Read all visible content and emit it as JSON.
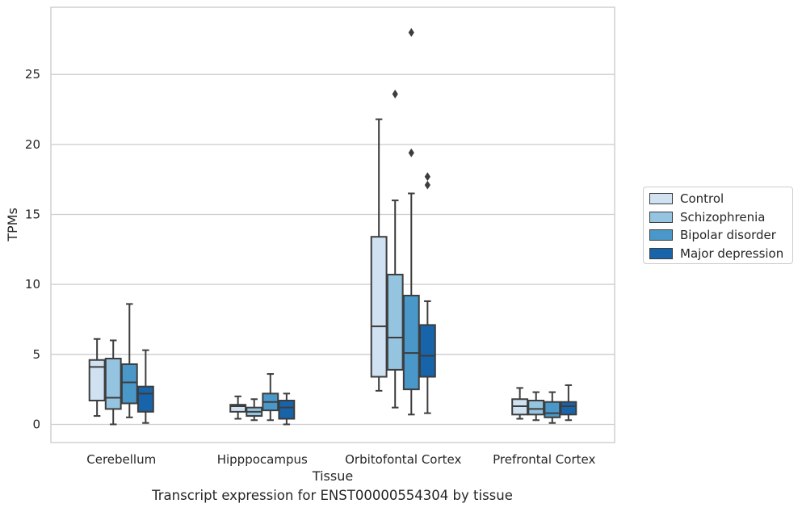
{
  "chart_data": {
    "type": "box",
    "xlabel": "Tissue",
    "ylabel": "TPMs",
    "caption": "Transcript expression for ENST00000554304 by tissue",
    "categories": [
      "Cerebellum",
      "Hipppocampus",
      "Orbitofontal Cortex",
      "Prefrontal Cortex"
    ],
    "ylim": [
      -1.3,
      29.8
    ],
    "yticks": [
      0,
      5,
      10,
      15,
      20,
      25
    ],
    "grid": "horizontal",
    "legend_position": "right",
    "series": [
      {
        "name": "Control",
        "color": "#d0e1f2",
        "boxes": [
          {
            "whisker_low": 0.6,
            "q1": 1.7,
            "median": 4.1,
            "q3": 4.6,
            "whisker_high": 6.1,
            "outliers": []
          },
          {
            "whisker_low": 0.4,
            "q1": 0.9,
            "median": 1.3,
            "q3": 1.4,
            "whisker_high": 2.0,
            "outliers": []
          },
          {
            "whisker_low": 2.4,
            "q1": 3.4,
            "median": 7.0,
            "q3": 13.4,
            "whisker_high": 21.8,
            "outliers": []
          },
          {
            "whisker_low": 0.4,
            "q1": 0.7,
            "median": 1.3,
            "q3": 1.8,
            "whisker_high": 2.6,
            "outliers": []
          }
        ]
      },
      {
        "name": "Schizophrenia",
        "color": "#94c4df",
        "boxes": [
          {
            "whisker_low": 0.0,
            "q1": 1.1,
            "median": 1.9,
            "q3": 4.7,
            "whisker_high": 6.0,
            "outliers": []
          },
          {
            "whisker_low": 0.3,
            "q1": 0.6,
            "median": 0.9,
            "q3": 1.2,
            "whisker_high": 1.8,
            "outliers": []
          },
          {
            "whisker_low": 1.2,
            "q1": 3.9,
            "median": 6.2,
            "q3": 10.7,
            "whisker_high": 16.0,
            "outliers": [
              23.6
            ]
          },
          {
            "whisker_low": 0.3,
            "q1": 0.7,
            "median": 1.1,
            "q3": 1.7,
            "whisker_high": 2.3,
            "outliers": []
          }
        ]
      },
      {
        "name": "Bipolar disorder",
        "color": "#4a98c9",
        "boxes": [
          {
            "whisker_low": 0.5,
            "q1": 1.5,
            "median": 3.0,
            "q3": 4.3,
            "whisker_high": 8.6,
            "outliers": []
          },
          {
            "whisker_low": 0.3,
            "q1": 1.0,
            "median": 1.6,
            "q3": 2.2,
            "whisker_high": 3.6,
            "outliers": []
          },
          {
            "whisker_low": 0.7,
            "q1": 2.5,
            "median": 5.1,
            "q3": 9.2,
            "whisker_high": 16.5,
            "outliers": [
              19.4,
              28.0
            ]
          },
          {
            "whisker_low": 0.1,
            "q1": 0.5,
            "median": 0.8,
            "q3": 1.6,
            "whisker_high": 2.3,
            "outliers": []
          }
        ]
      },
      {
        "name": "Major depression",
        "color": "#1764ab",
        "boxes": [
          {
            "whisker_low": 0.1,
            "q1": 0.9,
            "median": 2.2,
            "q3": 2.7,
            "whisker_high": 5.3,
            "outliers": []
          },
          {
            "whisker_low": 0.0,
            "q1": 0.4,
            "median": 1.2,
            "q3": 1.7,
            "whisker_high": 2.2,
            "outliers": []
          },
          {
            "whisker_low": 0.8,
            "q1": 3.4,
            "median": 4.9,
            "q3": 7.1,
            "whisker_high": 8.8,
            "outliers": [
              17.1,
              17.7
            ]
          },
          {
            "whisker_low": 0.3,
            "q1": 0.7,
            "median": 1.3,
            "q3": 1.6,
            "whisker_high": 2.8,
            "outliers": []
          }
        ]
      }
    ]
  }
}
